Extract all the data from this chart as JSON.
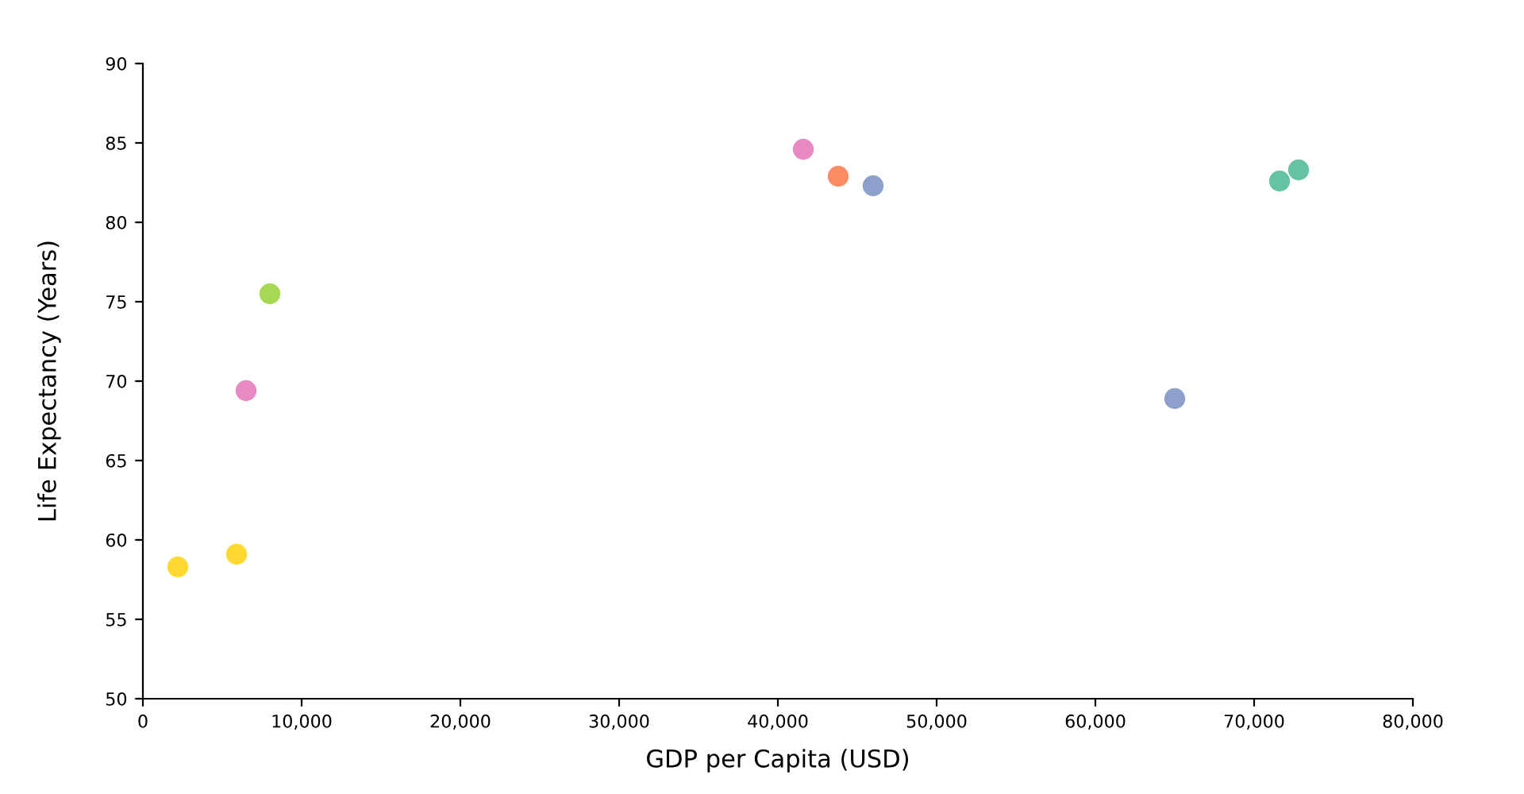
{
  "chart_data": {
    "type": "scatter",
    "xlabel": "GDP per Capita (USD)",
    "ylabel": "Life Expectancy (Years)",
    "x": [
      2200,
      5900,
      6500,
      8000,
      41600,
      43800,
      46000,
      65000,
      71600,
      72800
    ],
    "values": [
      58.3,
      59.1,
      69.4,
      75.5,
      84.6,
      82.9,
      82.3,
      68.9,
      82.6,
      83.3
    ],
    "colors": [
      "#ffd92f",
      "#ffd92f",
      "#e78ac3",
      "#a6d854",
      "#e78ac3",
      "#fc8d62",
      "#8da0cb",
      "#8da0cb",
      "#66c2a5",
      "#66c2a5"
    ],
    "xlim": [
      0,
      80000
    ],
    "ylim": [
      50,
      90
    ],
    "xticks": [
      0,
      {
        "value": 10000,
        "label": "10,000"
      },
      {
        "value": 20000,
        "label": "20,000"
      },
      {
        "value": 30000,
        "label": "30,000"
      },
      {
        "value": 40000,
        "label": "40,000"
      },
      {
        "value": 50000,
        "label": "50,000"
      },
      {
        "value": 60000,
        "label": "60,000"
      },
      {
        "value": 70000,
        "label": "70,000"
      },
      {
        "value": 80000,
        "label": "80,000"
      }
    ],
    "yticks": [
      50,
      55,
      60,
      65,
      70,
      75,
      80,
      85,
      90
    ],
    "grid": false,
    "marker": "circle"
  }
}
